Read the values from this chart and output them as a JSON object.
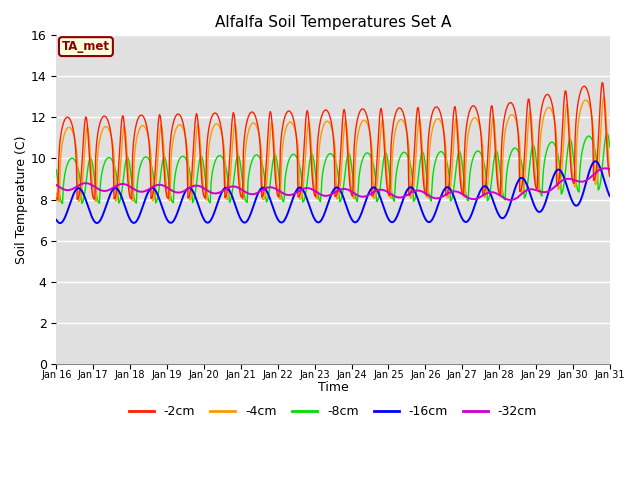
{
  "title": "Alfalfa Soil Temperatures Set A",
  "xlabel": "Time",
  "ylabel": "Soil Temperature (C)",
  "ylim": [
    0,
    16
  ],
  "yticks": [
    0,
    2,
    4,
    6,
    8,
    10,
    12,
    14,
    16
  ],
  "bg_color": "#e0e0e0",
  "legend_label": "TA_met",
  "series_colors": {
    "-2cm": "#ff2000",
    "-4cm": "#ff9900",
    "-8cm": "#00dd00",
    "-16cm": "#0000ff",
    "-32cm": "#cc00cc"
  },
  "x_tick_labels": [
    "Jan 16",
    "Jan 17",
    "Jan 18",
    "Jan 19",
    "Jan 20",
    "Jan 21",
    "Jan 22",
    "Jan 23",
    "Jan 24",
    "Jan 25",
    "Jan 26",
    "Jan 27",
    "Jan 28",
    "Jan 29",
    "Jan 30",
    "Jan 31"
  ]
}
